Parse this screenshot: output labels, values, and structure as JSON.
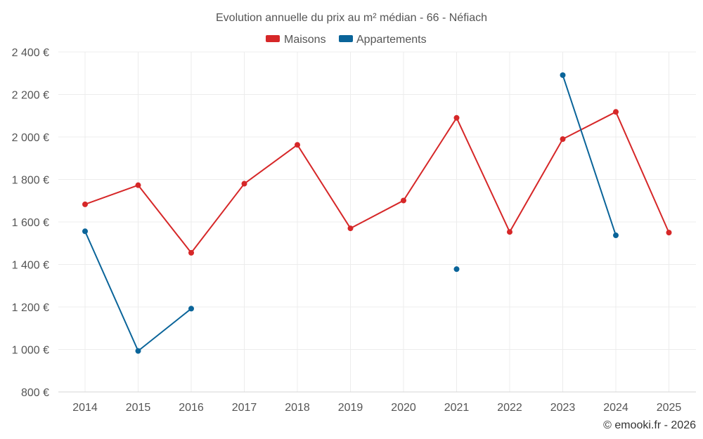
{
  "chart_data": {
    "type": "line",
    "title": "Evolution annuelle du prix au m² médian - 66 - Néfiach",
    "x": [
      "2014",
      "2015",
      "2016",
      "2017",
      "2018",
      "2019",
      "2020",
      "2021",
      "2022",
      "2023",
      "2024",
      "2025"
    ],
    "y_ticks": [
      800,
      1000,
      1200,
      1400,
      1600,
      1800,
      2000,
      2200,
      2400
    ],
    "y_tick_labels": [
      "800 €",
      "1 000 €",
      "1 200 €",
      "1 400 €",
      "1 600 €",
      "1 800 €",
      "2 000 €",
      "2 200 €",
      "2 400 €"
    ],
    "ylim": [
      800,
      2400
    ],
    "grid": true,
    "legend_position": "top-center",
    "series": [
      {
        "name": "Maisons",
        "color": "#d62728",
        "values": [
          1683,
          1773,
          1455,
          1780,
          1963,
          1570,
          1701,
          2090,
          1553,
          1990,
          2118,
          1550
        ]
      },
      {
        "name": "Appartements",
        "color": "#0a6499",
        "values": [
          1556,
          993,
          1192,
          null,
          null,
          null,
          null,
          1378,
          null,
          2291,
          1537,
          null
        ]
      }
    ],
    "credit": "© emooki.fr - 2026"
  }
}
